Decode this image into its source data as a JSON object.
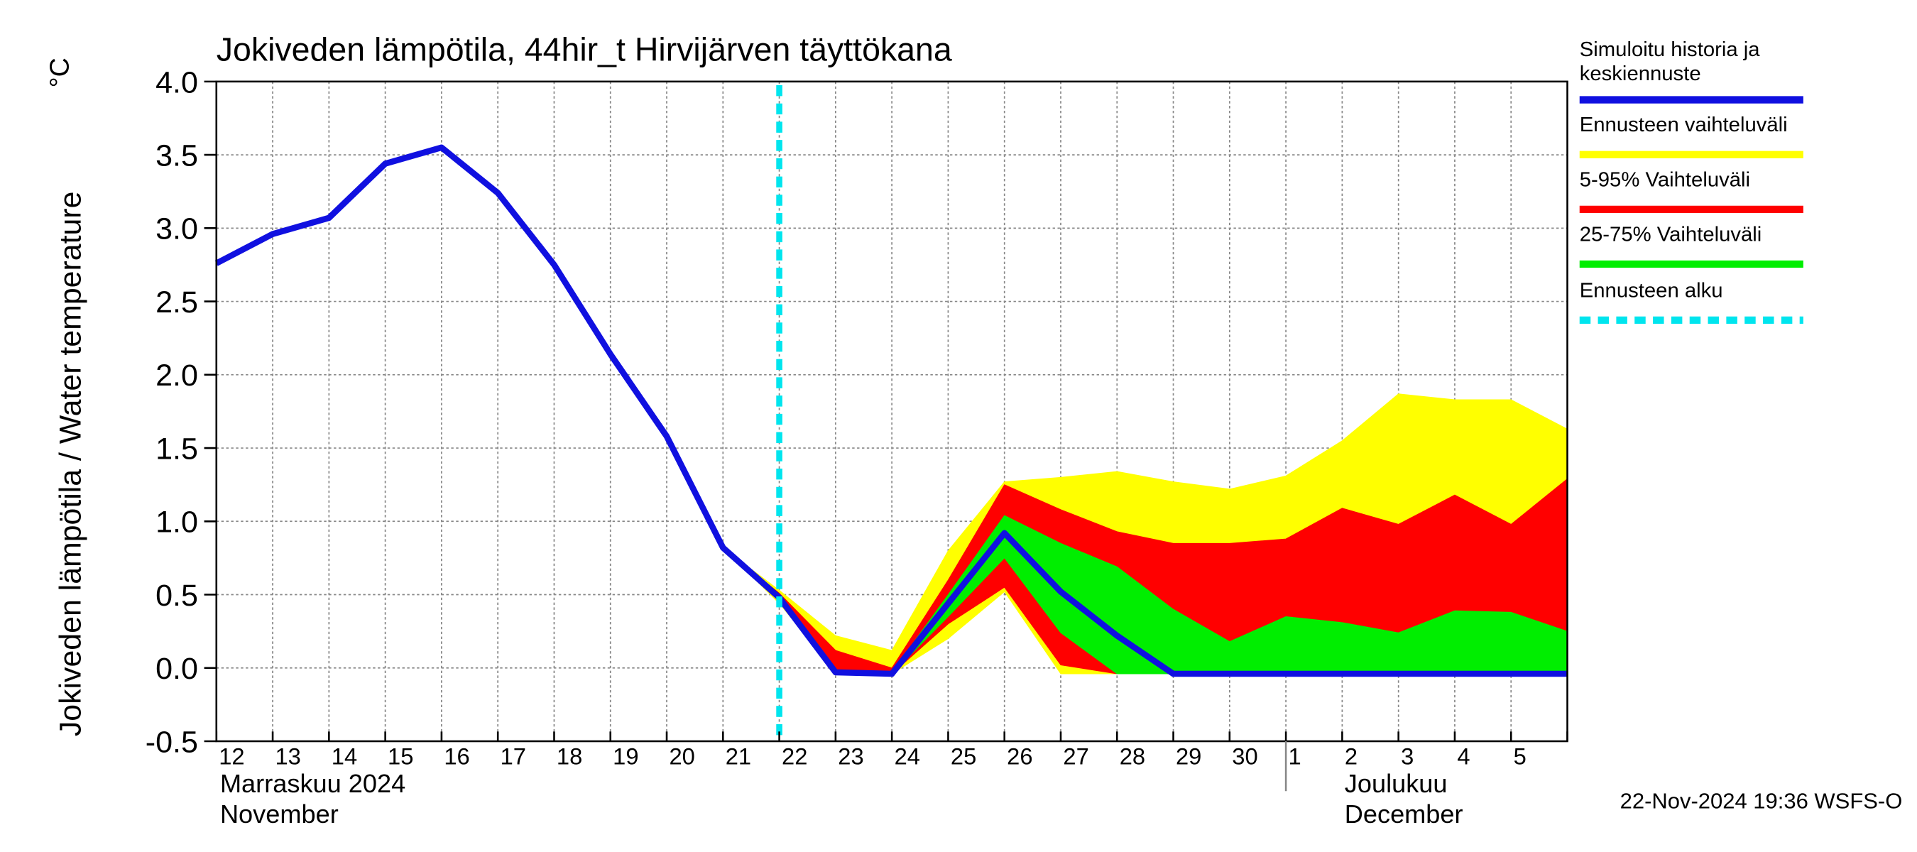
{
  "chart_data": {
    "type": "line",
    "title": "Jokiveden lämpötila, 44hir_t Hirvijärven täyttökana",
    "y_label": "Jokiveden lämpötila / Water temperature",
    "y_unit": "°C",
    "categories": [
      "12",
      "13",
      "14",
      "15",
      "16",
      "17",
      "18",
      "19",
      "20",
      "21",
      "22",
      "23",
      "24",
      "25",
      "26",
      "27",
      "28",
      "29",
      "30",
      "1",
      "2",
      "3",
      "4",
      "5",
      null
    ],
    "months": [
      {
        "label": [
          "Marraskuu 2024",
          "November"
        ],
        "start": "12"
      },
      {
        "label": [
          "Joulukuu",
          "December"
        ],
        "start": "1"
      }
    ],
    "forecast_start": "22",
    "ylim": [
      -0.5,
      4.0
    ],
    "yticks": [
      -0.5,
      {
        "value": 0,
        "label": "0.0"
      },
      0.5,
      {
        "value": 1,
        "label": "1.0"
      },
      1.5,
      {
        "value": 2,
        "label": "2.0"
      },
      2.5,
      {
        "value": 3,
        "label": "3.0"
      },
      3.5,
      {
        "value": 4,
        "label": "4.0"
      }
    ],
    "grid": true,
    "series": [
      {
        "name": "Simuloitu historia ja keskiennuste",
        "color": "#1010e0",
        "values": [
          2.76,
          2.96,
          3.07,
          3.44,
          3.55,
          3.24,
          2.75,
          2.14,
          1.58,
          0.82,
          0.48,
          -0.03,
          -0.04,
          0.44,
          0.92,
          0.52,
          0.22,
          -0.04,
          -0.04,
          -0.04,
          -0.04,
          -0.04,
          -0.04,
          -0.04,
          -0.04
        ]
      },
      {
        "name": "Ennusteen vaihteluväli",
        "color": "#ffff00",
        "lower": [
          null,
          null,
          null,
          null,
          null,
          null,
          null,
          null,
          null,
          0.82,
          0.44,
          -0.03,
          -0.04,
          0.2,
          0.52,
          -0.04,
          -0.04,
          -0.04,
          -0.04,
          -0.04,
          -0.04,
          -0.04,
          -0.04,
          -0.04,
          -0.04
        ],
        "upper": [
          null,
          null,
          null,
          null,
          null,
          null,
          null,
          null,
          null,
          0.82,
          0.53,
          0.22,
          0.12,
          0.8,
          1.27,
          1.3,
          1.34,
          1.27,
          1.22,
          1.31,
          1.55,
          1.87,
          1.83,
          1.83,
          1.63
        ]
      },
      {
        "name": "5-95% Vaihteluväli",
        "color": "#ff0000",
        "lower": [
          null,
          null,
          null,
          null,
          null,
          null,
          null,
          null,
          null,
          0.82,
          0.46,
          -0.03,
          -0.04,
          0.3,
          0.55,
          0.02,
          -0.04,
          -0.04,
          -0.04,
          -0.04,
          -0.04,
          -0.04,
          -0.04,
          -0.04,
          -0.04
        ],
        "upper": [
          null,
          null,
          null,
          null,
          null,
          null,
          null,
          null,
          null,
          0.82,
          0.51,
          0.12,
          0.0,
          0.6,
          1.25,
          1.08,
          0.93,
          0.85,
          0.85,
          0.88,
          1.09,
          0.98,
          1.18,
          0.98,
          1.29
        ]
      },
      {
        "name": "25-75% Vaihteluväli",
        "color": "#00ee00",
        "lower": [
          null,
          null,
          null,
          null,
          null,
          null,
          null,
          null,
          null,
          0.82,
          0.47,
          -0.03,
          -0.04,
          0.35,
          0.75,
          0.24,
          -0.04,
          -0.04,
          -0.04,
          -0.04,
          -0.04,
          -0.04,
          -0.04,
          -0.04,
          -0.04
        ],
        "upper": [
          null,
          null,
          null,
          null,
          null,
          null,
          null,
          null,
          null,
          0.82,
          0.5,
          -0.02,
          -0.03,
          0.5,
          1.04,
          0.85,
          0.69,
          0.4,
          0.18,
          0.35,
          0.31,
          0.24,
          0.39,
          0.38,
          0.25
        ]
      }
    ],
    "forecast_legend": {
      "name": "Ennusteen alku",
      "color": "#00e5ee"
    },
    "timestamp": "22-Nov-2024 19:36 WSFS-O"
  }
}
